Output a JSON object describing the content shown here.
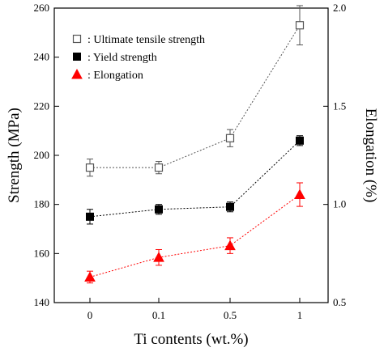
{
  "chart_data": {
    "type": "line",
    "categories": [
      "0",
      "0.1",
      "0.5",
      "1"
    ],
    "xlabel": "Ti contents (wt.%)",
    "ylabel": "Strength (MPa)",
    "y2label": "Elongation (%)",
    "ylim": [
      140,
      260
    ],
    "y2lim": [
      0.5,
      2.0
    ],
    "yticks": [
      "140",
      "160",
      "180",
      "200",
      "220",
      "240",
      "260"
    ],
    "y2ticks": [
      "0.5",
      "1.0",
      "1.5",
      "2.0"
    ],
    "grid": false,
    "legend_position": "top-left",
    "series": [
      {
        "name": ": Ultimate tensile strength",
        "axis": "left",
        "marker": "open-square",
        "color": "#555555",
        "values": [
          195,
          195,
          207,
          253
        ],
        "errors": [
          3.5,
          2.5,
          3.5,
          8
        ]
      },
      {
        "name": ": Yield strength",
        "axis": "left",
        "marker": "filled-square",
        "color": "#000000",
        "values": [
          175,
          178,
          179,
          206
        ],
        "errors": [
          3,
          2,
          2,
          2
        ]
      },
      {
        "name": ": Elongation",
        "axis": "right",
        "marker": "filled-triangle",
        "color": "#ff0000",
        "values": [
          0.63,
          0.73,
          0.79,
          1.05
        ],
        "errors": [
          0.03,
          0.04,
          0.04,
          0.06
        ]
      }
    ]
  }
}
